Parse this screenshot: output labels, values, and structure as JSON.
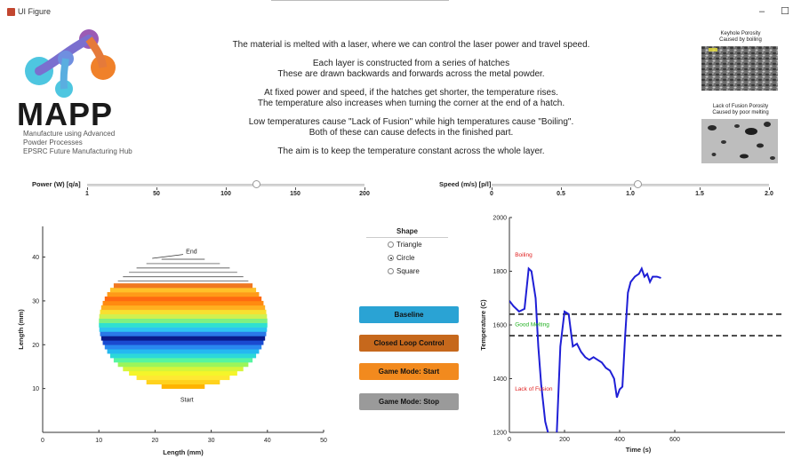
{
  "window": {
    "title": "UI Figure",
    "minimize_glyph": "–",
    "maximize_glyph": "☐"
  },
  "logo": {
    "name": "MAPP",
    "line1": "Manufacture using Advanced",
    "line2": "Powder Processes",
    "line3": "EPSRC Future Manufacturing Hub"
  },
  "description": [
    [
      "The material is melted with a laser, where we can control the laser power and travel speed."
    ],
    [
      "Each layer is constructed from a series of hatches",
      "These are drawn backwards and forwards across the metal powder."
    ],
    [
      "At fixed power and speed, if the hatches get shorter, the temperature rises.",
      "The temperature also increases when turning the corner at the end of a hatch."
    ],
    [
      "Low temperatures cause \"Lack of Fusion\" while high temperatures cause \"Boiling\".",
      "Both of these can cause defects in the finished part."
    ],
    [
      "The aim is to keep the temperature constant across the whole layer."
    ]
  ],
  "images": {
    "keyhole_caption1": "Keyhole Porosity",
    "keyhole_caption2": "Caused by boiling",
    "lof_caption1": "Lack of Fusion Porosity",
    "lof_caption2": "Caused by poor melting"
  },
  "power_slider": {
    "label": "Power (W) [q/a]",
    "ticks": [
      "1",
      "50",
      "100",
      "150",
      "200"
    ],
    "min": 1,
    "max": 200,
    "value": 122
  },
  "speed_slider": {
    "label": "Speed (m/s) [p/l]",
    "ticks": [
      "0",
      "0.5",
      "1.0",
      "1.5",
      "2.0"
    ],
    "min": 0,
    "max": 2.0,
    "value": 1.05
  },
  "shape": {
    "title": "Shape",
    "options": [
      {
        "label": "Triangle",
        "selected": false
      },
      {
        "label": "Circle",
        "selected": true
      },
      {
        "label": "Square",
        "selected": false
      }
    ]
  },
  "buttons": {
    "baseline": {
      "label": "Baseline",
      "color": "#2aa3d4"
    },
    "closed_loop": {
      "label": "Closed Loop Control",
      "color": "#c6681c"
    },
    "game_start": {
      "label": "Game Mode: Start",
      "color": "#f28a1e"
    },
    "game_stop": {
      "label": "Game Mode: Stop",
      "color": "#9a9a9a"
    }
  },
  "layer_plot": {
    "xlabel": "Length (mm)",
    "ylabel": "Length (mm)",
    "xlim": [
      0,
      50
    ],
    "ylim": [
      0,
      47
    ],
    "xticks": [
      "0",
      "10",
      "20",
      "30",
      "40",
      "50"
    ],
    "yticks": [
      "10",
      "20",
      "30",
      "40"
    ],
    "start_label": "Start",
    "end_label": "End"
  },
  "chart_data": {
    "type": "line",
    "xlabel": "Time (s)",
    "ylabel": "Temperature (C)",
    "xlim": [
      0,
      1000
    ],
    "ylim": [
      1200,
      2000
    ],
    "xticks": [
      "0",
      "200",
      "400",
      "600"
    ],
    "yticks": [
      "1200",
      "1400",
      "1600",
      "1800",
      "2000"
    ],
    "line_color": "#1f1fd6",
    "series": [
      {
        "x": [
          0,
          15,
          35,
          55,
          70,
          80,
          95,
          105,
          115,
          130,
          145,
          155,
          170,
          185,
          200,
          215,
          230,
          245,
          260,
          275,
          290,
          305,
          320,
          335,
          350,
          365,
          380,
          390,
          400,
          410,
          420,
          430,
          440,
          455,
          470,
          480,
          490,
          500,
          510,
          520,
          535,
          550
        ],
        "y": [
          1690,
          1670,
          1650,
          1660,
          1810,
          1800,
          1700,
          1520,
          1380,
          1240,
          1180,
          1150,
          1150,
          1520,
          1650,
          1640,
          1520,
          1530,
          1500,
          1480,
          1470,
          1480,
          1470,
          1460,
          1440,
          1430,
          1400,
          1330,
          1360,
          1370,
          1560,
          1720,
          1760,
          1780,
          1790,
          1810,
          1780,
          1790,
          1760,
          1780,
          1780,
          1775
        ]
      }
    ],
    "thresholds": [
      {
        "y": 1640
      },
      {
        "y": 1560
      }
    ],
    "annotations": [
      {
        "text": "Boiling",
        "color": "#e02020",
        "x": 20,
        "y": 1855
      },
      {
        "text": "Good Melting",
        "color": "#20b020",
        "x": 20,
        "y": 1595
      },
      {
        "text": "Lack of Fusion",
        "color": "#e02020",
        "x": 20,
        "y": 1355
      }
    ]
  }
}
